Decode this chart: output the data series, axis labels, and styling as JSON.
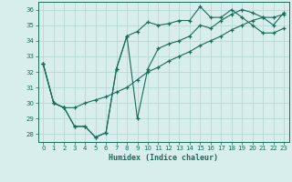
{
  "xlabel": "Humidex (Indice chaleur)",
  "bg_color": "#d8eeec",
  "line_color": "#1a6b5a",
  "grid_color": "#b8d8d4",
  "xlim": [
    -0.5,
    23.5
  ],
  "ylim": [
    27.5,
    36.5
  ],
  "xticks": [
    0,
    1,
    2,
    3,
    4,
    5,
    6,
    7,
    8,
    9,
    10,
    11,
    12,
    13,
    14,
    15,
    16,
    17,
    18,
    19,
    20,
    21,
    22,
    23
  ],
  "yticks": [
    28,
    29,
    30,
    31,
    32,
    33,
    34,
    35,
    36
  ],
  "series1_x": [
    0,
    1,
    2,
    3,
    4,
    5,
    6,
    7,
    8,
    9,
    10,
    11,
    12,
    13,
    14,
    15,
    16,
    17,
    18,
    19,
    20,
    21,
    22,
    23
  ],
  "series1_y": [
    32.5,
    30.0,
    29.7,
    28.5,
    28.5,
    27.8,
    28.1,
    32.2,
    34.3,
    34.6,
    35.2,
    35.0,
    35.1,
    35.3,
    35.3,
    36.2,
    35.5,
    35.5,
    36.0,
    35.5,
    35.0,
    34.5,
    34.5,
    34.8
  ],
  "series2_x": [
    0,
    1,
    2,
    3,
    4,
    5,
    6,
    7,
    8,
    9,
    10,
    11,
    12,
    13,
    14,
    15,
    16,
    17,
    18,
    19,
    20,
    21,
    22,
    23
  ],
  "series2_y": [
    32.5,
    30.0,
    29.7,
    29.7,
    30.0,
    30.2,
    30.4,
    30.7,
    31.0,
    31.5,
    32.0,
    32.3,
    32.7,
    33.0,
    33.3,
    33.7,
    34.0,
    34.3,
    34.7,
    35.0,
    35.3,
    35.5,
    35.5,
    35.7
  ],
  "series3_x": [
    0,
    1,
    2,
    3,
    4,
    5,
    6,
    7,
    8,
    9,
    10,
    11,
    12,
    13,
    14,
    15,
    16,
    17,
    18,
    19,
    20,
    21,
    22,
    23
  ],
  "series3_y": [
    32.5,
    30.0,
    29.7,
    28.5,
    28.5,
    27.8,
    28.1,
    32.2,
    34.3,
    29.0,
    32.2,
    33.5,
    33.8,
    34.0,
    34.3,
    35.0,
    34.8,
    35.3,
    35.7,
    36.0,
    35.8,
    35.5,
    35.0,
    35.8
  ]
}
